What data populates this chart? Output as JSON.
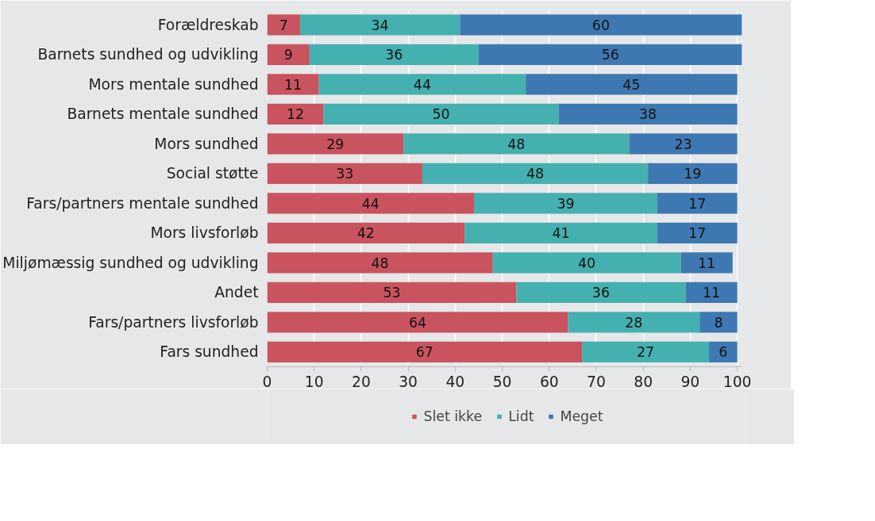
{
  "chart_data": {
    "type": "bar",
    "orientation": "horizontal",
    "stacked": true,
    "data_labels": true,
    "grid": "x",
    "legend": "bottom",
    "categories": [
      "Forældreskab",
      "Barnets sundhed og udvikling",
      "Mors mentale sundhed",
      "Barnets mentale sundhed",
      "Mors sundhed",
      "Social støtte",
      "Fars/partners mentale sundhed",
      "Mors livsforløb",
      "Miljømæssig sundhed og udvikling",
      "Andet",
      "Fars/partners livsforløb",
      "Fars sundhed"
    ],
    "series": [
      {
        "name": "Slet ikke",
        "color": "#c9535e",
        "values": [
          7,
          9,
          11,
          12,
          29,
          33,
          44,
          42,
          48,
          53,
          64,
          67
        ]
      },
      {
        "name": "Lidt",
        "color": "#45b0b0",
        "values": [
          34,
          36,
          44,
          50,
          48,
          48,
          39,
          41,
          40,
          36,
          28,
          27
        ]
      },
      {
        "name": "Meget",
        "color": "#3e78b2",
        "values": [
          60,
          56,
          45,
          38,
          23,
          19,
          17,
          17,
          11,
          11,
          8,
          6
        ]
      }
    ],
    "xlim": [
      0,
      101
    ],
    "xticks": [
      0,
      10,
      20,
      30,
      40,
      50,
      60,
      70,
      80,
      90,
      100
    ]
  }
}
